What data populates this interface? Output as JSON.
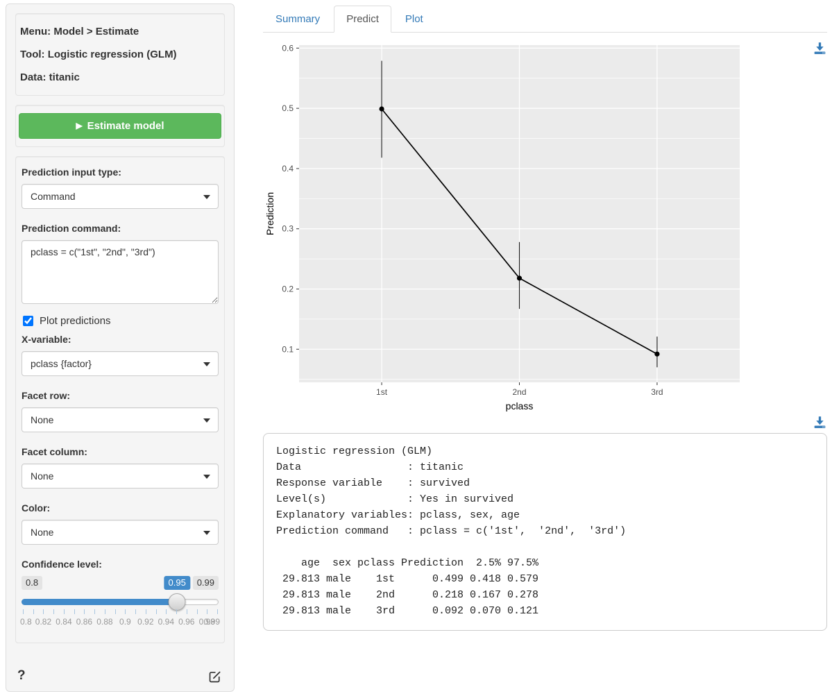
{
  "colors": {
    "link_blue": "#337ab7",
    "button_green": "#5cb85c",
    "slider_blue": "#428bca",
    "panel_grey": "#ebebeb"
  },
  "sidebar": {
    "info": {
      "menu": "Menu: Model > Estimate",
      "tool": "Tool: Logistic regression (GLM)",
      "data": "Data: titanic"
    },
    "estimate_button": {
      "label": "Estimate model",
      "play_glyph": "▶"
    },
    "fields": {
      "input_type": {
        "label": "Prediction input type:",
        "value": "Command"
      },
      "command": {
        "label": "Prediction command:",
        "value": "pclass = c(\"1st\", \"2nd\", \"3rd\")"
      },
      "plot_predictions": {
        "label": "Plot predictions",
        "checked": true
      },
      "x_variable": {
        "label": "X-variable:",
        "value": "pclass {factor}"
      },
      "facet_row": {
        "label": "Facet row:",
        "value": "None"
      },
      "facet_column": {
        "label": "Facet column:",
        "value": "None"
      },
      "color": {
        "label": "Color:",
        "value": "None"
      }
    },
    "confidence": {
      "label": "Confidence level:",
      "min_label": "0.8",
      "max_label": "0.99",
      "value_label": "0.95",
      "grid_labels": [
        "0.8",
        "0.82",
        "0.84",
        "0.86",
        "0.88",
        "0.9",
        "0.92",
        "0.94",
        "0.96",
        "0.98",
        "0.99"
      ],
      "tick_count": 20
    },
    "help_label": "?"
  },
  "tabs": [
    {
      "label": "Summary",
      "active": false
    },
    {
      "label": "Predict",
      "active": true
    },
    {
      "label": "Plot",
      "active": false
    }
  ],
  "chart_data": {
    "type": "line",
    "style": "point-line-errorbar",
    "x": [
      "1st",
      "2nd",
      "3rd"
    ],
    "series": [
      {
        "name": "Prediction",
        "values": [
          0.499,
          0.218,
          0.092
        ]
      },
      {
        "name": "2.5%",
        "values": [
          0.418,
          0.167,
          0.07
        ]
      },
      {
        "name": "97.5%",
        "values": [
          0.579,
          0.278,
          0.121
        ]
      }
    ],
    "title": "",
    "xlabel": "pclass",
    "ylabel": "Prediction",
    "yticks": [
      0.1,
      0.2,
      0.3,
      0.4,
      0.5,
      0.6
    ],
    "yminor": [
      0.05,
      0.15,
      0.25,
      0.35,
      0.45,
      0.55
    ],
    "ylim": [
      0.045,
      0.605
    ],
    "grid": true,
    "legend": "none",
    "panel_bg": "#ebebeb"
  },
  "output": {
    "lines": [
      "Logistic regression (GLM)",
      "Data                 : titanic",
      "Response variable    : survived",
      "Level(s)             : Yes in survived",
      "Explanatory variables: pclass, sex, age",
      "Prediction command   : pclass = c('1st',  '2nd',  '3rd')",
      "",
      "    age  sex pclass Prediction  2.5% 97.5%",
      " 29.813 male    1st      0.499 0.418 0.579",
      " 29.813 male    2nd      0.218 0.167 0.278",
      " 29.813 male    3rd      0.092 0.070 0.121"
    ]
  }
}
